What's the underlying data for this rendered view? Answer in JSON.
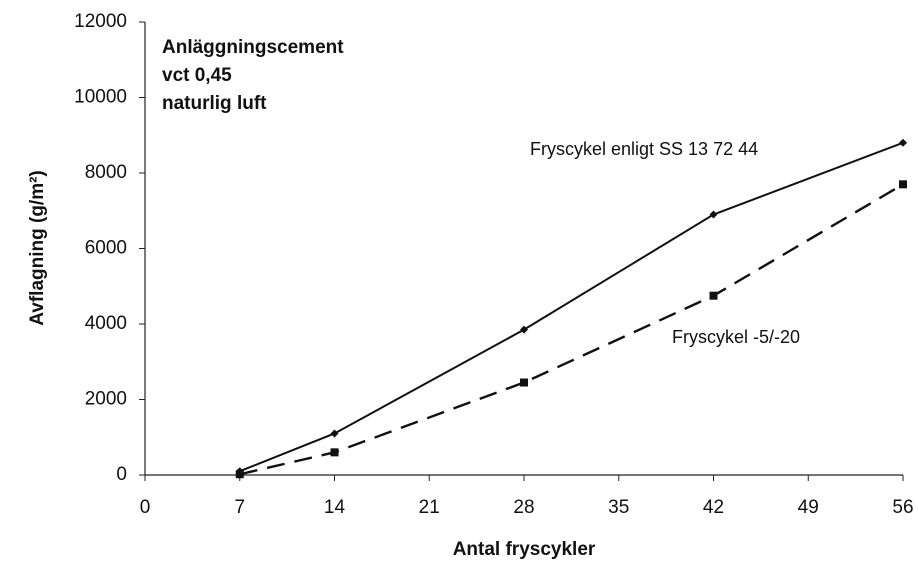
{
  "chart_data": {
    "type": "line",
    "annotations": [
      "Anläggningscement",
      "vct 0,45",
      "naturlig luft"
    ],
    "x_label": "Antal fryscykler",
    "y_label": "Avflagning (g/m²)",
    "x": [
      7,
      14,
      28,
      42,
      56
    ],
    "series": [
      {
        "name": "Fryscykel enligt SS 13 72 44",
        "color": "#111111",
        "dashed": false,
        "marker": "diamond",
        "values": [
          100,
          1100,
          3850,
          6900,
          8800
        ]
      },
      {
        "name": "Fryscykel -5/-20",
        "color": "#111111",
        "dashed": true,
        "marker": "square",
        "values": [
          20,
          600,
          2450,
          4750,
          7700
        ]
      }
    ],
    "xlim": [
      0,
      56
    ],
    "xticks": [
      0,
      7,
      14,
      21,
      28,
      35,
      42,
      49,
      56
    ],
    "ylim": [
      0,
      12000
    ],
    "yticks": [
      0,
      2000,
      4000,
      6000,
      8000,
      10000,
      12000
    ],
    "grid": false
  }
}
